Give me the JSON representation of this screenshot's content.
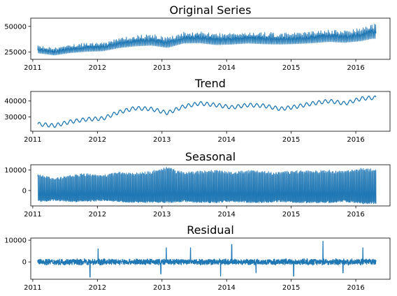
{
  "chart_data": [
    {
      "type": "line",
      "title": "Original Series",
      "xlabel": "",
      "ylabel": "",
      "x_range": [
        "2011-01-29",
        "2016-04-24"
      ],
      "x_ticks": [
        "2011",
        "2012",
        "2013",
        "2014",
        "2015",
        "2016"
      ],
      "ylim": [
        18000,
        58000
      ],
      "y_ticks": [
        25000,
        50000
      ],
      "color": "#1f77b4",
      "series": [
        {
          "x": [
            "2011-02",
            "2011-05",
            "2011-08",
            "2011-11",
            "2012-02",
            "2012-05",
            "2012-08",
            "2012-11",
            "2013-02",
            "2013-05",
            "2013-08",
            "2013-11",
            "2014-02",
            "2014-05",
            "2014-08",
            "2014-11",
            "2015-02",
            "2015-05",
            "2015-08",
            "2015-11",
            "2016-02",
            "2016-04"
          ],
          "y": [
            27000,
            25000,
            27500,
            29000,
            29500,
            33000,
            35000,
            36000,
            33500,
            38000,
            38500,
            36500,
            37000,
            38000,
            37500,
            37000,
            37500,
            38500,
            40000,
            39000,
            41000,
            44000
          ],
          "band": [
            6000,
            6000,
            6500,
            7000,
            7000,
            8000,
            8500,
            9000,
            8500,
            9000,
            9500,
            9000,
            9000,
            9000,
            9500,
            9000,
            9000,
            9500,
            10000,
            9500,
            10500,
            12000
          ]
        }
      ]
    },
    {
      "type": "line",
      "title": "Trend",
      "xlabel": "",
      "ylabel": "",
      "x_range": [
        "2011-01-29",
        "2016-04-24"
      ],
      "x_ticks": [
        "2011",
        "2012",
        "2013",
        "2014",
        "2015",
        "2016"
      ],
      "ylim": [
        21000,
        46000
      ],
      "y_ticks": [
        30000,
        40000
      ],
      "color": "#1f77b4",
      "series": [
        {
          "x": [
            "2011-02",
            "2011-05",
            "2011-08",
            "2011-11",
            "2012-02",
            "2012-05",
            "2012-08",
            "2012-11",
            "2013-02",
            "2013-05",
            "2013-08",
            "2013-11",
            "2014-02",
            "2014-05",
            "2014-08",
            "2014-11",
            "2015-02",
            "2015-05",
            "2015-08",
            "2015-11",
            "2016-02",
            "2016-04"
          ],
          "y": [
            25500,
            24500,
            27000,
            28500,
            29000,
            33000,
            35500,
            35000,
            32500,
            36500,
            38500,
            37500,
            36000,
            37500,
            37000,
            35000,
            36500,
            38500,
            40000,
            38500,
            41500,
            42000
          ],
          "wiggle": 2500
        }
      ]
    },
    {
      "type": "line",
      "title": "Seasonal",
      "xlabel": "",
      "ylabel": "",
      "x_range": [
        "2011-01-29",
        "2016-04-24"
      ],
      "x_ticks": [
        "2011",
        "2012",
        "2013",
        "2014",
        "2015",
        "2016"
      ],
      "ylim": [
        -7500,
        12500
      ],
      "y_ticks": [
        0,
        10000
      ],
      "color": "#1f77b4",
      "series": [
        {
          "x": [
            "2011-02",
            "2011-05",
            "2011-08",
            "2011-11",
            "2012-02",
            "2012-05",
            "2012-08",
            "2012-11",
            "2013-02",
            "2013-05",
            "2013-08",
            "2013-11",
            "2014-02",
            "2014-05",
            "2014-08",
            "2014-11",
            "2015-02",
            "2015-05",
            "2015-08",
            "2015-11",
            "2016-02",
            "2016-04"
          ],
          "upper": [
            8000,
            6000,
            7500,
            8500,
            7500,
            9000,
            8500,
            9500,
            11500,
            9000,
            9500,
            10000,
            9000,
            10000,
            9500,
            9000,
            10000,
            9500,
            10000,
            9500,
            11000,
            10500
          ],
          "lower": [
            -5500,
            -5000,
            -5500,
            -5500,
            -5000,
            -5500,
            -6000,
            -6000,
            -6000,
            -5500,
            -6000,
            -6000,
            -5500,
            -6000,
            -6000,
            -5500,
            -6000,
            -6000,
            -6000,
            -5500,
            -6500,
            -6500
          ]
        }
      ]
    },
    {
      "type": "line",
      "title": "Residual",
      "xlabel": "",
      "ylabel": "",
      "x_range": [
        "2011-01-29",
        "2016-04-24"
      ],
      "x_ticks": [
        "2011",
        "2012",
        "2013",
        "2014",
        "2015",
        "2016"
      ],
      "ylim": [
        -8000,
        11000
      ],
      "y_ticks": [
        0,
        10000
      ],
      "color": "#1f77b4",
      "series": [
        {
          "noise": 1500,
          "spikes": [
            {
              "x": "2011-11-20",
              "y": -7000
            },
            {
              "x": "2012-01-05",
              "y": 6000
            },
            {
              "x": "2012-12-25",
              "y": -5500
            },
            {
              "x": "2013-01-25",
              "y": 6500
            },
            {
              "x": "2013-06-10",
              "y": 6500
            },
            {
              "x": "2013-11-28",
              "y": -6500
            },
            {
              "x": "2014-01-30",
              "y": 8000
            },
            {
              "x": "2014-06-15",
              "y": -5000
            },
            {
              "x": "2015-01-15",
              "y": -6500
            },
            {
              "x": "2015-06-28",
              "y": 9500
            },
            {
              "x": "2015-10-20",
              "y": -5000
            },
            {
              "x": "2016-02-10",
              "y": 6500
            }
          ]
        }
      ]
    }
  ]
}
